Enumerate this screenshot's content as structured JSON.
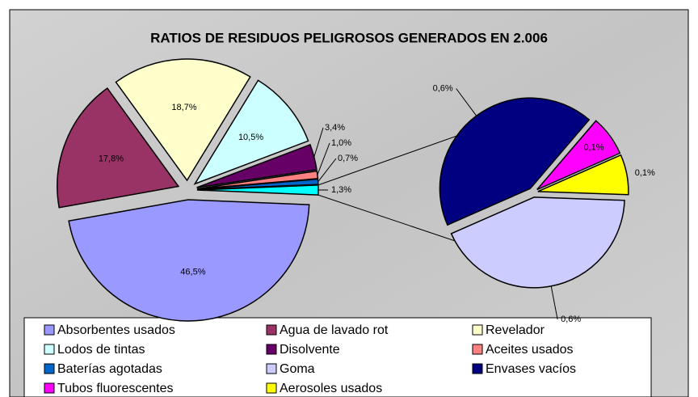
{
  "chart_data": {
    "type": "pie_of_pie",
    "title": "RATIOS DE RESIDUOS PELIGROSOS GENERADOS EN 2.006",
    "categories": [
      "Absorbentes usados",
      "Agua de lavado rot",
      "Revelador",
      "Lodos de tintas",
      "Disolvente",
      "Aceites usados",
      "Baterías agotadas",
      "Goma",
      "Envases vacíos",
      "Tubos fluorescentes",
      "Aerosoles usados"
    ],
    "values": [
      46.5,
      17.8,
      18.7,
      10.5,
      3.4,
      1.0,
      0.7,
      0.6,
      0.6,
      0.1,
      0.1
    ],
    "value_labels": [
      "46,5%",
      "17,8%",
      "18,7%",
      "10,5%",
      "3,4%",
      "1,0%",
      "0,7%",
      "0,6%",
      "0,6%",
      "0,1%",
      "0,1%"
    ],
    "colors": [
      "#9999ff",
      "#993366",
      "#ffffcc",
      "#ccffff",
      "#660066",
      "#ff8080",
      "#0066cc",
      "#ccccff",
      "#000080",
      "#ff00ff",
      "#ffff00"
    ],
    "secondary_count": 4,
    "other_value": 1.3,
    "other_label": "1,3%",
    "other_color": "#00ffff",
    "legend": "bottom"
  }
}
